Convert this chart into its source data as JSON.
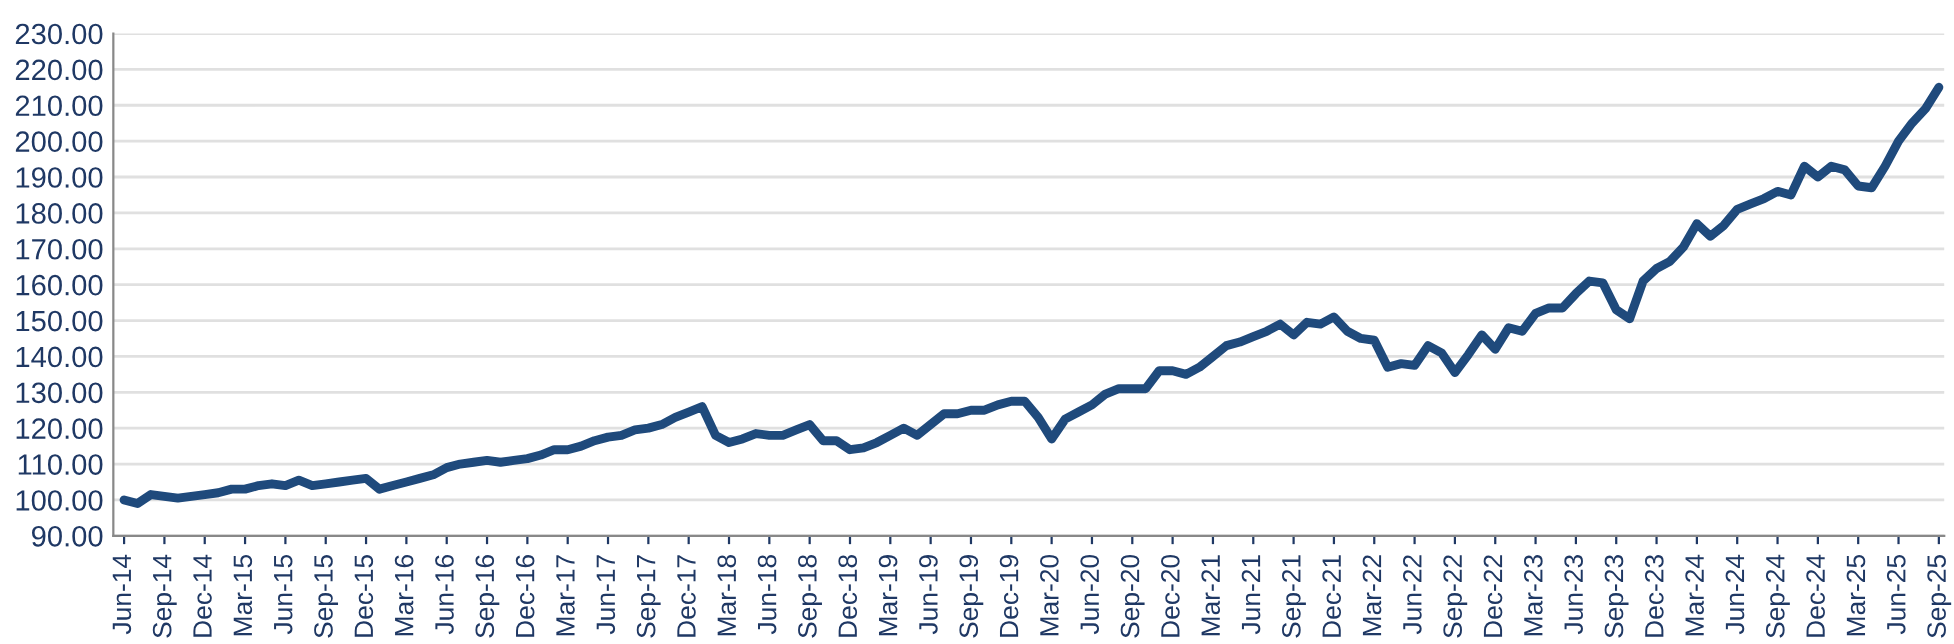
{
  "chart_data": {
    "type": "line",
    "categories": [
      "Jun-14",
      null,
      null,
      "Sep-14",
      null,
      null,
      "Dec-14",
      null,
      null,
      "Mar-15",
      null,
      null,
      "Jun-15",
      null,
      null,
      "Sep-15",
      null,
      null,
      "Dec-15",
      null,
      null,
      "Mar-16",
      null,
      null,
      "Jun-16",
      null,
      null,
      "Sep-16",
      null,
      null,
      "Dec-16",
      null,
      null,
      "Mar-17",
      null,
      null,
      "Jun-17",
      null,
      null,
      "Sep-17",
      null,
      null,
      "Dec-17",
      null,
      null,
      "Mar-18",
      null,
      null,
      "Jun-18",
      null,
      null,
      "Sep-18",
      null,
      null,
      "Dec-18",
      null,
      null,
      "Mar-19",
      null,
      null,
      "Jun-19",
      null,
      null,
      "Sep-19",
      null,
      null,
      "Dec-19",
      null,
      null,
      "Mar-20",
      null,
      null,
      "Jun-20",
      null,
      null,
      "Sep-20",
      null,
      null,
      "Dec-20",
      null,
      null,
      "Mar-21",
      null,
      null,
      "Jun-21",
      null,
      null,
      "Sep-21",
      null,
      null,
      "Dec-21",
      null,
      null,
      "Mar-22",
      null,
      null,
      "Jun-22",
      null,
      null,
      "Sep-22",
      null,
      null,
      "Dec-22",
      null,
      null,
      "Mar-23",
      null,
      null,
      "Jun-23",
      null,
      null,
      "Sep-23",
      null,
      null,
      "Dec-23",
      null,
      null,
      "Mar-24",
      null,
      null,
      "Jun-24",
      null,
      null,
      "Sep-24",
      null,
      null,
      "Dec-24",
      null,
      null,
      "Mar-25",
      null,
      null,
      "Jun-25",
      null,
      null,
      "Sep-25"
    ],
    "series": [
      {
        "color": "#1f4a7c",
        "values": [
          100,
          99,
          101.5,
          101,
          100.5,
          101,
          101.5,
          102,
          103,
          103,
          104,
          104.5,
          104,
          105.5,
          104,
          104.5,
          105,
          105.5,
          106,
          103,
          104,
          105,
          106,
          107,
          109,
          110,
          110.5,
          111,
          110.5,
          111,
          111.5,
          112.5,
          114,
          114,
          115,
          116.5,
          117.5,
          118,
          119.5,
          120,
          121,
          123,
          124.5,
          126,
          118,
          116,
          117,
          118.5,
          118,
          118,
          119.5,
          121,
          116.5,
          116.5,
          114,
          114.5,
          116,
          118,
          120,
          118,
          121,
          124,
          124,
          125,
          125,
          126.5,
          127.5,
          127.5,
          123,
          117,
          122.5,
          124.5,
          126.5,
          129.5,
          131,
          131,
          131,
          136,
          136,
          135,
          137,
          140,
          143,
          144,
          145.5,
          147,
          149,
          146,
          149.5,
          149,
          151,
          147,
          145,
          144.5,
          137,
          138,
          137.5,
          143,
          141,
          135.5,
          140.5,
          146,
          142,
          148,
          147,
          152,
          153.5,
          153.5,
          157.5,
          161,
          160.5,
          153,
          150.5,
          161,
          164.5,
          166.5,
          170.5,
          177,
          173.5,
          176.5,
          181,
          182.5,
          184,
          186,
          185,
          193,
          190,
          193,
          192,
          187.5,
          187,
          193,
          200,
          205,
          209,
          215
        ]
      }
    ],
    "ylim": [
      90,
      230
    ],
    "yticks": [
      {
        "value": 90,
        "label": "90.00"
      },
      {
        "value": 100,
        "label": "100.00"
      },
      {
        "value": 110,
        "label": "110.00"
      },
      {
        "value": 120,
        "label": "120.00"
      },
      {
        "value": 130,
        "label": "130.00"
      },
      {
        "value": 140,
        "label": "140.00"
      },
      {
        "value": 150,
        "label": "150.00"
      },
      {
        "value": 160,
        "label": "160.00"
      },
      {
        "value": 170,
        "label": "170.00"
      },
      {
        "value": 180,
        "label": "180.00"
      },
      {
        "value": 190,
        "label": "190.00"
      },
      {
        "value": 200,
        "label": "200.00"
      },
      {
        "value": 210,
        "label": "210.00"
      },
      {
        "value": 220,
        "label": "220.00"
      },
      {
        "value": 230,
        "label": "230.00"
      }
    ],
    "grid": "y",
    "line_style": "solid",
    "marker": "none"
  }
}
